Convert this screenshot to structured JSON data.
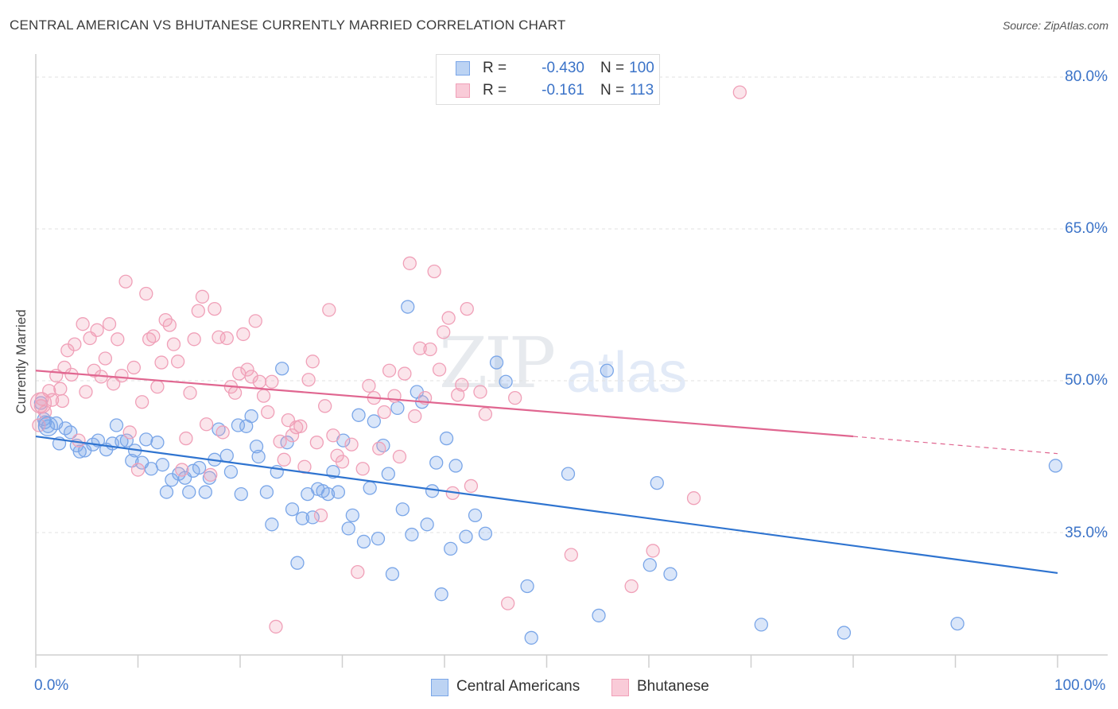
{
  "title": "CENTRAL AMERICAN VS BHUTANESE CURRENTLY MARRIED CORRELATION CHART",
  "source": "Source: ZipAtlas.com",
  "watermark": {
    "zip": "ZIP",
    "atlas": "atlas"
  },
  "legend": {
    "rows": [
      {
        "r_label": "R =",
        "r_value": "-0.430",
        "n_label": "N =",
        "n_value": "100",
        "color": "#7aa6e8"
      },
      {
        "r_label": "R =",
        "r_value": "-0.161",
        "n_label": "N =",
        "n_value": "113",
        "color": "#f0a0b8"
      }
    ]
  },
  "bottom_legend": [
    {
      "label": "Central Americans",
      "color": "#7aa6e8"
    },
    {
      "label": "Bhutanese",
      "color": "#f0a0b8"
    }
  ],
  "chart_data": {
    "type": "scatter",
    "title": "CENTRAL AMERICAN VS BHUTANESE CURRENTLY MARRIED CORRELATION CHART",
    "xlabel": "",
    "ylabel": "Currently Married",
    "xlim": [
      0,
      100
    ],
    "ylim": [
      20,
      82
    ],
    "x_tick_labels": [
      "0.0%",
      "100.0%"
    ],
    "y_ticks": [
      35,
      50,
      65,
      80
    ],
    "y_tick_labels": [
      "35.0%",
      "50.0%",
      "65.0%",
      "80.0%"
    ],
    "grid": true,
    "legend_position": "top-center",
    "series": [
      {
        "name": "Central Americans",
        "color": "#7aa6e8",
        "line_color": "#2f74d0",
        "trend": {
          "x0": 0,
          "y0": 44.5,
          "x1": 100,
          "y1": 31.0
        },
        "points": [
          [
            0.5,
            47.8
          ],
          [
            0.8,
            46.2
          ],
          [
            1.2,
            45.5
          ],
          [
            2.0,
            45.8
          ],
          [
            2.3,
            43.8
          ],
          [
            2.9,
            45.3
          ],
          [
            3.4,
            44.9
          ],
          [
            4.0,
            43.6
          ],
          [
            4.3,
            43.0
          ],
          [
            4.8,
            43.1
          ],
          [
            5.6,
            43.7
          ],
          [
            6.1,
            44.1
          ],
          [
            6.9,
            43.2
          ],
          [
            7.5,
            43.8
          ],
          [
            7.9,
            45.6
          ],
          [
            8.4,
            44.0
          ],
          [
            8.9,
            44.1
          ],
          [
            9.4,
            42.1
          ],
          [
            9.7,
            43.1
          ],
          [
            10.4,
            41.9
          ],
          [
            10.8,
            44.2
          ],
          [
            11.3,
            41.3
          ],
          [
            11.9,
            43.9
          ],
          [
            12.4,
            41.7
          ],
          [
            12.8,
            39.0
          ],
          [
            13.3,
            40.2
          ],
          [
            14.0,
            40.8
          ],
          [
            14.6,
            40.4
          ],
          [
            15.0,
            39.0
          ],
          [
            15.4,
            41.1
          ],
          [
            16.0,
            41.4
          ],
          [
            16.6,
            39.0
          ],
          [
            17.0,
            40.4
          ],
          [
            17.5,
            42.2
          ],
          [
            17.9,
            45.2
          ],
          [
            18.7,
            42.6
          ],
          [
            19.1,
            41.0
          ],
          [
            19.8,
            45.6
          ],
          [
            20.1,
            38.8
          ],
          [
            20.6,
            45.5
          ],
          [
            21.1,
            46.5
          ],
          [
            21.6,
            43.5
          ],
          [
            21.8,
            42.5
          ],
          [
            22.6,
            39.0
          ],
          [
            23.1,
            35.8
          ],
          [
            23.6,
            41.0
          ],
          [
            24.1,
            51.2
          ],
          [
            24.6,
            43.9
          ],
          [
            25.1,
            37.3
          ],
          [
            25.6,
            32.0
          ],
          [
            26.1,
            36.4
          ],
          [
            26.6,
            38.8
          ],
          [
            27.1,
            36.5
          ],
          [
            27.6,
            39.3
          ],
          [
            28.1,
            39.1
          ],
          [
            28.6,
            38.8
          ],
          [
            29.1,
            41.0
          ],
          [
            29.6,
            39.0
          ],
          [
            30.1,
            44.1
          ],
          [
            30.6,
            35.4
          ],
          [
            31.0,
            36.7
          ],
          [
            31.6,
            46.6
          ],
          [
            32.1,
            34.1
          ],
          [
            32.7,
            39.4
          ],
          [
            33.1,
            46.0
          ],
          [
            33.5,
            34.4
          ],
          [
            34.0,
            43.6
          ],
          [
            34.5,
            40.8
          ],
          [
            34.9,
            30.9
          ],
          [
            35.4,
            47.3
          ],
          [
            35.9,
            37.3
          ],
          [
            36.4,
            57.3
          ],
          [
            36.8,
            34.8
          ],
          [
            37.3,
            48.9
          ],
          [
            37.8,
            47.9
          ],
          [
            38.3,
            35.8
          ],
          [
            38.8,
            39.1
          ],
          [
            39.2,
            41.9
          ],
          [
            39.7,
            28.9
          ],
          [
            40.2,
            44.3
          ],
          [
            40.6,
            33.4
          ],
          [
            41.1,
            41.6
          ],
          [
            42.1,
            34.6
          ],
          [
            43.0,
            36.7
          ],
          [
            44.0,
            34.9
          ],
          [
            45.1,
            51.8
          ],
          [
            46.0,
            49.9
          ],
          [
            48.1,
            29.7
          ],
          [
            48.5,
            24.6
          ],
          [
            52.1,
            40.8
          ],
          [
            55.1,
            26.8
          ],
          [
            55.9,
            51.0
          ],
          [
            60.1,
            31.8
          ],
          [
            60.8,
            39.9
          ],
          [
            62.1,
            30.9
          ],
          [
            71.0,
            25.9
          ],
          [
            79.1,
            25.1
          ],
          [
            90.2,
            26.0
          ],
          [
            99.8,
            41.6
          ],
          [
            0.9,
            45.9
          ]
        ]
      },
      {
        "name": "Bhutanese",
        "color": "#f0a0b8",
        "line_color": "#e06690",
        "trend": {
          "x0": 0,
          "y0": 51.0,
          "x1": 80,
          "y1": 44.5
        },
        "trend_dashed_to": {
          "x": 100,
          "y": 42.8
        },
        "points": [
          [
            0.3,
            45.6
          ],
          [
            0.6,
            48.2
          ],
          [
            0.9,
            46.9
          ],
          [
            1.3,
            49.0
          ],
          [
            1.6,
            48.1
          ],
          [
            2.0,
            50.5
          ],
          [
            2.4,
            49.2
          ],
          [
            2.8,
            51.3
          ],
          [
            3.1,
            53.0
          ],
          [
            3.5,
            50.6
          ],
          [
            3.8,
            53.6
          ],
          [
            4.2,
            44.1
          ],
          [
            4.6,
            55.6
          ],
          [
            4.9,
            48.9
          ],
          [
            5.3,
            54.2
          ],
          [
            5.7,
            51.0
          ],
          [
            6.0,
            55.0
          ],
          [
            6.4,
            50.4
          ],
          [
            6.8,
            52.2
          ],
          [
            7.2,
            55.6
          ],
          [
            7.6,
            49.7
          ],
          [
            8.0,
            54.1
          ],
          [
            8.4,
            50.5
          ],
          [
            8.8,
            59.8
          ],
          [
            9.2,
            44.9
          ],
          [
            9.6,
            51.3
          ],
          [
            10.0,
            41.2
          ],
          [
            10.4,
            47.9
          ],
          [
            10.8,
            58.6
          ],
          [
            11.1,
            54.1
          ],
          [
            11.5,
            54.4
          ],
          [
            11.9,
            49.4
          ],
          [
            12.3,
            51.8
          ],
          [
            12.7,
            56.0
          ],
          [
            13.1,
            55.5
          ],
          [
            13.5,
            53.6
          ],
          [
            13.9,
            51.9
          ],
          [
            14.3,
            41.2
          ],
          [
            14.7,
            44.3
          ],
          [
            15.1,
            48.8
          ],
          [
            15.5,
            54.1
          ],
          [
            15.9,
            56.9
          ],
          [
            16.3,
            58.3
          ],
          [
            16.7,
            45.7
          ],
          [
            17.1,
            40.7
          ],
          [
            17.5,
            57.1
          ],
          [
            17.9,
            54.3
          ],
          [
            18.3,
            44.9
          ],
          [
            18.7,
            54.2
          ],
          [
            19.1,
            49.4
          ],
          [
            19.5,
            48.8
          ],
          [
            19.9,
            50.7
          ],
          [
            20.3,
            54.6
          ],
          [
            20.7,
            51.1
          ],
          [
            21.1,
            50.4
          ],
          [
            21.5,
            55.9
          ],
          [
            21.9,
            49.9
          ],
          [
            22.3,
            48.5
          ],
          [
            22.7,
            46.9
          ],
          [
            23.1,
            49.9
          ],
          [
            23.5,
            25.7
          ],
          [
            23.9,
            44.0
          ],
          [
            24.3,
            42.2
          ],
          [
            24.7,
            46.1
          ],
          [
            25.1,
            44.6
          ],
          [
            25.5,
            45.4
          ],
          [
            25.9,
            45.5
          ],
          [
            26.3,
            41.5
          ],
          [
            26.7,
            50.1
          ],
          [
            27.1,
            51.9
          ],
          [
            27.5,
            43.9
          ],
          [
            27.9,
            36.7
          ],
          [
            28.3,
            47.5
          ],
          [
            28.7,
            57.0
          ],
          [
            29.1,
            44.6
          ],
          [
            29.5,
            42.6
          ],
          [
            30.9,
            43.7
          ],
          [
            31.5,
            31.1
          ],
          [
            32.0,
            41.3
          ],
          [
            32.6,
            49.5
          ],
          [
            33.1,
            48.3
          ],
          [
            33.6,
            43.3
          ],
          [
            34.1,
            46.9
          ],
          [
            34.6,
            51.0
          ],
          [
            35.1,
            48.5
          ],
          [
            35.6,
            42.5
          ],
          [
            36.1,
            50.7
          ],
          [
            36.6,
            61.6
          ],
          [
            37.1,
            46.5
          ],
          [
            37.6,
            53.2
          ],
          [
            38.1,
            48.3
          ],
          [
            38.6,
            53.1
          ],
          [
            39.0,
            60.8
          ],
          [
            39.5,
            51.1
          ],
          [
            39.9,
            54.8
          ],
          [
            40.4,
            56.2
          ],
          [
            40.8,
            38.9
          ],
          [
            41.3,
            48.6
          ],
          [
            41.7,
            49.6
          ],
          [
            42.2,
            57.1
          ],
          [
            42.6,
            39.6
          ],
          [
            43.5,
            48.9
          ],
          [
            44.0,
            46.7
          ],
          [
            46.2,
            28.0
          ],
          [
            46.9,
            48.3
          ],
          [
            52.4,
            32.8
          ],
          [
            58.3,
            29.7
          ],
          [
            60.4,
            33.2
          ],
          [
            64.4,
            38.4
          ],
          [
            68.9,
            78.5
          ],
          [
            0.5,
            47.5
          ],
          [
            2.6,
            48.0
          ],
          [
            30.0,
            42.0
          ]
        ]
      }
    ]
  }
}
